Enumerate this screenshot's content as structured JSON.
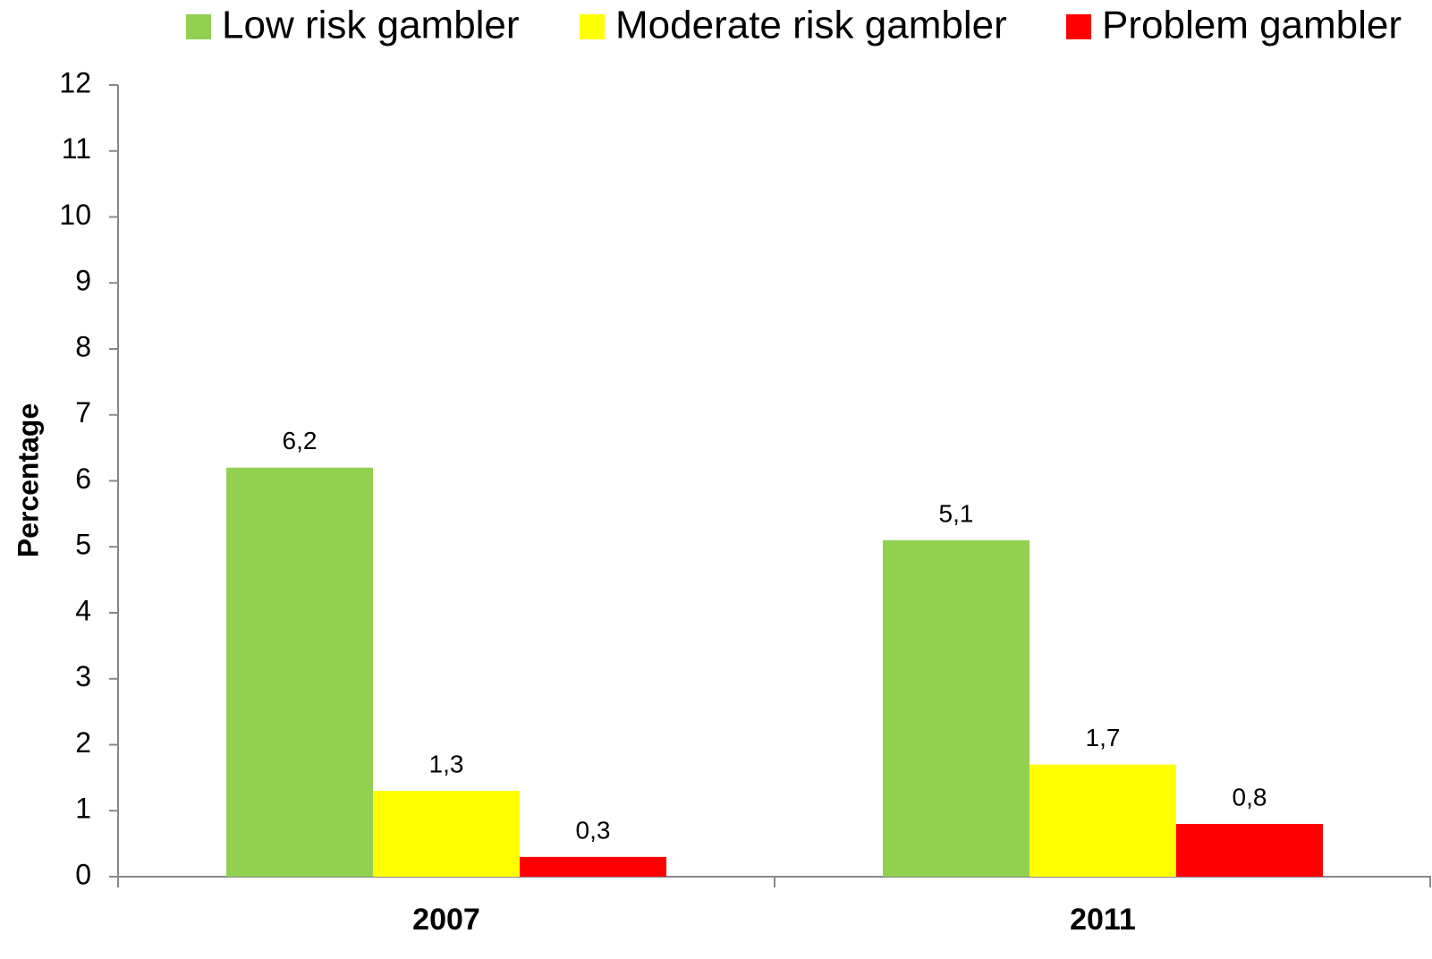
{
  "chart_data": {
    "type": "bar",
    "categories": [
      "2007",
      "2011"
    ],
    "series": [
      {
        "name": "Low risk gambler",
        "color": "#92d050",
        "values": [
          6.2,
          5.1
        ],
        "value_labels": [
          "6,2",
          "5,1"
        ]
      },
      {
        "name": "Moderate risk gambler",
        "color": "#ffff00",
        "values": [
          1.3,
          1.7
        ],
        "value_labels": [
          "1,3",
          "1,7"
        ]
      },
      {
        "name": "Problem gambler",
        "color": "#ff0000",
        "values": [
          0.3,
          0.8
        ],
        "value_labels": [
          "0,3",
          "0,8"
        ]
      }
    ],
    "y_label": "Percentage",
    "ylim": [
      0,
      12
    ],
    "yticks": [
      0,
      1,
      2,
      3,
      4,
      5,
      6,
      7,
      8,
      9,
      10,
      11,
      12
    ],
    "grid": false,
    "legend": "top"
  }
}
